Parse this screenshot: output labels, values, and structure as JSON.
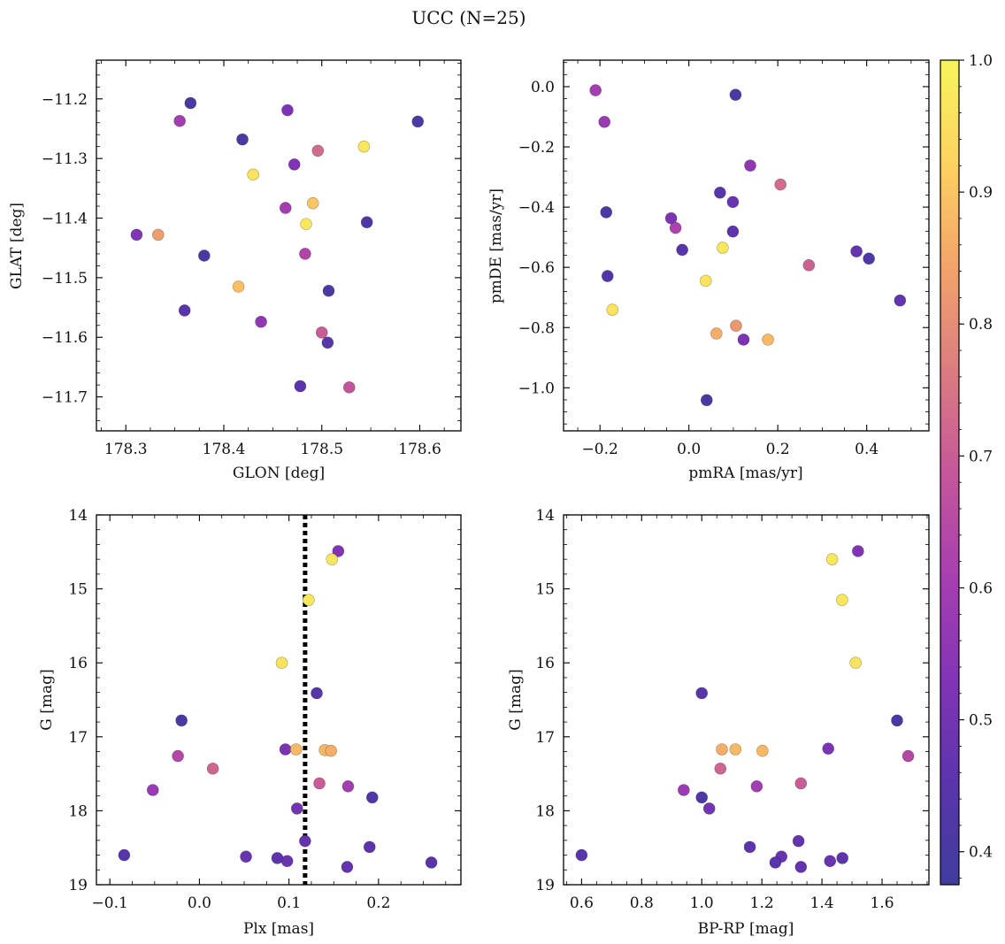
{
  "figure_title": "UCC (N=25)",
  "colorbar": {
    "range": [
      0.375,
      1.0
    ],
    "ticks": [
      0.4,
      0.5,
      0.6,
      0.7,
      0.8,
      0.9,
      1.0
    ],
    "tick_labels": [
      "0.4",
      "0.5",
      "0.6",
      "0.7",
      "0.8",
      "0.9",
      "1.0"
    ],
    "colormap": "plasma (clipped)",
    "colors": [
      "#3f3d9c",
      "#5b34ab",
      "#8234b6",
      "#a73fb0",
      "#c5579a",
      "#db7d80",
      "#f2a46a",
      "#fdd261",
      "#f6f55a"
    ]
  },
  "chart_data": [
    {
      "type": "scatter",
      "panel": "top-left",
      "xlabel": "GLON [deg]",
      "ylabel": "GLAT [deg]",
      "xlim": [
        178.27,
        178.642
      ],
      "ylim": [
        -11.757,
        -11.135
      ],
      "y_inverted": false,
      "xticks": [
        178.3,
        178.4,
        178.5,
        178.6
      ],
      "xtick_labels": [
        "178.3",
        "178.4",
        "178.5",
        "178.6"
      ],
      "yticks": [
        -11.7,
        -11.6,
        -11.5,
        -11.4,
        -11.3,
        -11.2
      ],
      "ytick_labels": [
        "−11.7",
        "−11.6",
        "−11.5",
        "−11.4",
        "−11.3",
        "−11.2"
      ],
      "points": [
        {
          "x": 178.366,
          "y": -11.207,
          "c": 0.4
        },
        {
          "x": 178.355,
          "y": -11.237,
          "c": 0.6
        },
        {
          "x": 178.465,
          "y": -11.219,
          "c": 0.52
        },
        {
          "x": 178.419,
          "y": -11.268,
          "c": 0.4
        },
        {
          "x": 178.598,
          "y": -11.238,
          "c": 0.41
        },
        {
          "x": 178.543,
          "y": -11.28,
          "c": 0.97
        },
        {
          "x": 178.496,
          "y": -11.287,
          "c": 0.73
        },
        {
          "x": 178.472,
          "y": -11.31,
          "c": 0.53
        },
        {
          "x": 178.43,
          "y": -11.327,
          "c": 0.96
        },
        {
          "x": 178.491,
          "y": -11.375,
          "c": 0.9
        },
        {
          "x": 178.463,
          "y": -11.383,
          "c": 0.6
        },
        {
          "x": 178.484,
          "y": -11.41,
          "c": 0.97
        },
        {
          "x": 178.546,
          "y": -11.407,
          "c": 0.42
        },
        {
          "x": 178.311,
          "y": -11.428,
          "c": 0.53
        },
        {
          "x": 178.333,
          "y": -11.428,
          "c": 0.83
        },
        {
          "x": 178.483,
          "y": -11.46,
          "c": 0.63
        },
        {
          "x": 178.38,
          "y": -11.463,
          "c": 0.41
        },
        {
          "x": 178.415,
          "y": -11.515,
          "c": 0.89
        },
        {
          "x": 178.507,
          "y": -11.522,
          "c": 0.41
        },
        {
          "x": 178.36,
          "y": -11.555,
          "c": 0.45
        },
        {
          "x": 178.438,
          "y": -11.574,
          "c": 0.56
        },
        {
          "x": 178.5,
          "y": -11.592,
          "c": 0.7
        },
        {
          "x": 178.506,
          "y": -11.609,
          "c": 0.44
        },
        {
          "x": 178.478,
          "y": -11.682,
          "c": 0.45
        },
        {
          "x": 178.528,
          "y": -11.684,
          "c": 0.68
        }
      ]
    },
    {
      "type": "scatter",
      "panel": "top-right",
      "xlabel": "pmRA [mas/yr]",
      "ylabel": "pmDE [mas/yr]",
      "xlim": [
        -0.282,
        0.54
      ],
      "ylim": [
        -1.143,
        0.088
      ],
      "y_inverted": false,
      "xticks": [
        -0.2,
        0.0,
        0.2,
        0.4
      ],
      "xtick_labels": [
        "−0.2",
        "0.0",
        "0.2",
        "0.4"
      ],
      "yticks": [
        -1.0,
        -0.8,
        -0.6,
        -0.4,
        -0.2,
        0.0
      ],
      "ytick_labels": [
        "−1.0",
        "−0.8",
        "−0.6",
        "−0.4",
        "−0.2",
        "0.0"
      ],
      "points": [
        {
          "x": -0.21,
          "y": -0.012,
          "c": 0.6
        },
        {
          "x": 0.105,
          "y": -0.027,
          "c": 0.41
        },
        {
          "x": -0.19,
          "y": -0.117,
          "c": 0.58
        },
        {
          "x": 0.138,
          "y": -0.262,
          "c": 0.56
        },
        {
          "x": 0.206,
          "y": -0.325,
          "c": 0.73
        },
        {
          "x": 0.07,
          "y": -0.352,
          "c": 0.44
        },
        {
          "x": 0.099,
          "y": -0.383,
          "c": 0.48
        },
        {
          "x": -0.186,
          "y": -0.417,
          "c": 0.41
        },
        {
          "x": -0.04,
          "y": -0.437,
          "c": 0.52
        },
        {
          "x": -0.03,
          "y": -0.469,
          "c": 0.62
        },
        {
          "x": 0.099,
          "y": -0.481,
          "c": 0.46
        },
        {
          "x": 0.076,
          "y": -0.535,
          "c": 0.97
        },
        {
          "x": -0.015,
          "y": -0.542,
          "c": 0.45
        },
        {
          "x": 0.377,
          "y": -0.547,
          "c": 0.47
        },
        {
          "x": 0.405,
          "y": -0.571,
          "c": 0.42
        },
        {
          "x": 0.27,
          "y": -0.593,
          "c": 0.71
        },
        {
          "x": -0.183,
          "y": -0.629,
          "c": 0.43
        },
        {
          "x": 0.038,
          "y": -0.645,
          "c": 0.96
        },
        {
          "x": 0.475,
          "y": -0.71,
          "c": 0.47
        },
        {
          "x": -0.172,
          "y": -0.741,
          "c": 0.96
        },
        {
          "x": 0.106,
          "y": -0.794,
          "c": 0.82
        },
        {
          "x": 0.062,
          "y": -0.82,
          "c": 0.86
        },
        {
          "x": 0.123,
          "y": -0.84,
          "c": 0.52
        },
        {
          "x": 0.178,
          "y": -0.84,
          "c": 0.88
        },
        {
          "x": 0.04,
          "y": -1.041,
          "c": 0.4
        }
      ]
    },
    {
      "type": "scatter",
      "panel": "bottom-left",
      "xlabel": "Plx [mas]",
      "ylabel": "G [mag]",
      "xlim": [
        -0.115,
        0.292
      ],
      "ylim": [
        19.0,
        14.0
      ],
      "y_inverted": true,
      "vline": {
        "x": 0.118,
        "style": "dotted"
      },
      "xticks": [
        -0.1,
        0.0,
        0.1,
        0.2
      ],
      "xtick_labels": [
        "−0.1",
        "0.0",
        "0.1",
        "0.2"
      ],
      "yticks": [
        14,
        15,
        16,
        17,
        18,
        19
      ],
      "ytick_labels": [
        "14",
        "15",
        "16",
        "17",
        "18",
        "19"
      ],
      "points": [
        {
          "x": 0.155,
          "y": 14.49,
          "c": 0.53
        },
        {
          "x": 0.148,
          "y": 14.6,
          "c": 0.97
        },
        {
          "x": 0.122,
          "y": 15.15,
          "c": 0.97
        },
        {
          "x": 0.092,
          "y": 16.0,
          "c": 0.96
        },
        {
          "x": 0.131,
          "y": 16.41,
          "c": 0.44
        },
        {
          "x": -0.02,
          "y": 16.78,
          "c": 0.4
        },
        {
          "x": 0.096,
          "y": 17.17,
          "c": 0.52
        },
        {
          "x": 0.108,
          "y": 17.17,
          "c": 0.88
        },
        {
          "x": 0.14,
          "y": 17.18,
          "c": 0.88
        },
        {
          "x": 0.147,
          "y": 17.19,
          "c": 0.86
        },
        {
          "x": -0.024,
          "y": 17.26,
          "c": 0.64
        },
        {
          "x": 0.015,
          "y": 17.43,
          "c": 0.72
        },
        {
          "x": 0.134,
          "y": 17.63,
          "c": 0.7
        },
        {
          "x": 0.166,
          "y": 17.67,
          "c": 0.6
        },
        {
          "x": -0.052,
          "y": 17.72,
          "c": 0.58
        },
        {
          "x": 0.193,
          "y": 17.82,
          "c": 0.42
        },
        {
          "x": 0.109,
          "y": 17.97,
          "c": 0.5
        },
        {
          "x": 0.118,
          "y": 18.41,
          "c": 0.47
        },
        {
          "x": 0.19,
          "y": 18.49,
          "c": 0.46
        },
        {
          "x": -0.084,
          "y": 18.6,
          "c": 0.44
        },
        {
          "x": 0.052,
          "y": 18.62,
          "c": 0.48
        },
        {
          "x": 0.087,
          "y": 18.64,
          "c": 0.46
        },
        {
          "x": 0.098,
          "y": 18.68,
          "c": 0.48
        },
        {
          "x": 0.259,
          "y": 18.7,
          "c": 0.45
        },
        {
          "x": 0.165,
          "y": 18.76,
          "c": 0.47
        }
      ]
    },
    {
      "type": "scatter",
      "panel": "bottom-right",
      "xlabel": "BP-RP [mag]",
      "ylabel": "G [mag]",
      "xlim": [
        0.54,
        1.756
      ],
      "ylim": [
        19.0,
        14.0
      ],
      "y_inverted": true,
      "xticks": [
        0.6,
        0.8,
        1.0,
        1.2,
        1.4,
        1.6
      ],
      "xtick_labels": [
        "0.6",
        "0.8",
        "1.0",
        "1.2",
        "1.4",
        "1.6"
      ],
      "yticks": [
        14,
        15,
        16,
        17,
        18,
        19
      ],
      "ytick_labels": [
        "14",
        "15",
        "16",
        "17",
        "18",
        "19"
      ],
      "points": [
        {
          "x": 1.52,
          "y": 14.49,
          "c": 0.53
        },
        {
          "x": 1.434,
          "y": 14.6,
          "c": 0.97
        },
        {
          "x": 1.467,
          "y": 15.15,
          "c": 0.97
        },
        {
          "x": 1.512,
          "y": 16.0,
          "c": 0.96
        },
        {
          "x": 1.0,
          "y": 16.41,
          "c": 0.44
        },
        {
          "x": 1.65,
          "y": 16.78,
          "c": 0.4
        },
        {
          "x": 1.067,
          "y": 17.17,
          "c": 0.86
        },
        {
          "x": 1.112,
          "y": 17.17,
          "c": 0.88
        },
        {
          "x": 1.421,
          "y": 17.16,
          "c": 0.52
        },
        {
          "x": 1.202,
          "y": 17.19,
          "c": 0.88
        },
        {
          "x": 1.687,
          "y": 17.26,
          "c": 0.64
        },
        {
          "x": 1.062,
          "y": 17.43,
          "c": 0.72
        },
        {
          "x": 1.33,
          "y": 17.63,
          "c": 0.7
        },
        {
          "x": 1.183,
          "y": 17.67,
          "c": 0.6
        },
        {
          "x": 0.94,
          "y": 17.72,
          "c": 0.58
        },
        {
          "x": 1.0,
          "y": 17.82,
          "c": 0.42
        },
        {
          "x": 1.025,
          "y": 17.97,
          "c": 0.5
        },
        {
          "x": 1.322,
          "y": 18.41,
          "c": 0.47
        },
        {
          "x": 1.16,
          "y": 18.49,
          "c": 0.46
        },
        {
          "x": 0.6,
          "y": 18.6,
          "c": 0.44
        },
        {
          "x": 1.265,
          "y": 18.62,
          "c": 0.48
        },
        {
          "x": 1.468,
          "y": 18.64,
          "c": 0.46
        },
        {
          "x": 1.427,
          "y": 18.68,
          "c": 0.48
        },
        {
          "x": 1.245,
          "y": 18.7,
          "c": 0.45
        },
        {
          "x": 1.33,
          "y": 18.76,
          "c": 0.47
        }
      ]
    }
  ]
}
